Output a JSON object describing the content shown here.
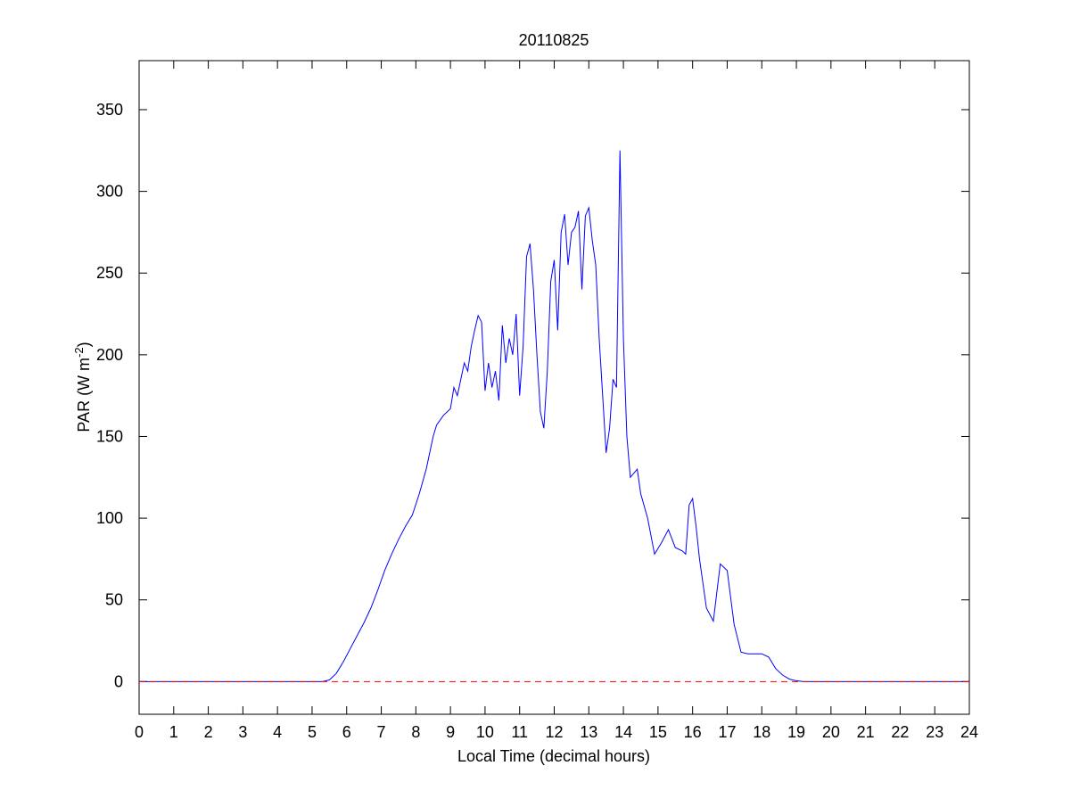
{
  "chart_data": {
    "type": "line",
    "title": "20110825",
    "x_label": "Local Time (decimal hours)",
    "y_label": {
      "text": "PAR (W m",
      "superscript": "-2",
      "suffix": ")"
    },
    "xlim": [
      0,
      24
    ],
    "xticks": [
      0,
      1,
      2,
      3,
      4,
      5,
      6,
      7,
      8,
      9,
      10,
      11,
      12,
      13,
      14,
      15,
      16,
      17,
      18,
      19,
      20,
      21,
      22,
      23,
      24
    ],
    "ylim": [
      -20,
      380
    ],
    "yticks": [
      0,
      50,
      100,
      150,
      200,
      250,
      300,
      350
    ],
    "grid": false,
    "series": [
      {
        "color": "#0000ff",
        "dash": false,
        "x": [
          0,
          5.3,
          5.5,
          5.7,
          5.9,
          6.1,
          6.3,
          6.5,
          6.7,
          6.9,
          7.1,
          7.3,
          7.5,
          7.7,
          7.9,
          8.1,
          8.3,
          8.5,
          8.6,
          8.8,
          9.0,
          9.1,
          9.2,
          9.3,
          9.4,
          9.5,
          9.6,
          9.7,
          9.8,
          9.9,
          10.0,
          10.1,
          10.2,
          10.3,
          10.4,
          10.5,
          10.6,
          10.7,
          10.8,
          10.9,
          11.0,
          11.1,
          11.2,
          11.3,
          11.4,
          11.5,
          11.6,
          11.7,
          11.8,
          11.9,
          12.0,
          12.1,
          12.2,
          12.3,
          12.4,
          12.5,
          12.6,
          12.7,
          12.8,
          12.9,
          13.0,
          13.1,
          13.2,
          13.3,
          13.4,
          13.5,
          13.6,
          13.7,
          13.8,
          13.9,
          14.0,
          14.1,
          14.2,
          14.4,
          14.5,
          14.7,
          14.9,
          15.1,
          15.3,
          15.5,
          15.7,
          15.8,
          15.9,
          16.0,
          16.1,
          16.2,
          16.4,
          16.6,
          16.8,
          17.0,
          17.2,
          17.4,
          17.6,
          17.8,
          18.0,
          18.2,
          18.4,
          18.6,
          18.8,
          19.0,
          19.2,
          24
        ],
        "values": [
          0,
          0,
          1,
          5,
          12,
          20,
          28,
          36,
          45,
          56,
          68,
          78,
          87,
          95,
          102,
          115,
          130,
          150,
          157,
          163,
          167,
          180,
          175,
          185,
          195,
          190,
          205,
          215,
          224,
          220,
          178,
          195,
          180,
          190,
          172,
          218,
          195,
          210,
          200,
          225,
          175,
          205,
          260,
          268,
          240,
          200,
          165,
          155,
          190,
          245,
          258,
          215,
          275,
          286,
          255,
          275,
          278,
          288,
          240,
          285,
          290,
          270,
          255,
          210,
          175,
          140,
          155,
          185,
          180,
          325,
          210,
          150,
          125,
          130,
          115,
          100,
          78,
          85,
          93,
          82,
          80,
          78,
          108,
          112,
          95,
          75,
          45,
          37,
          72,
          68,
          35,
          18,
          17,
          17,
          17,
          15,
          8,
          4,
          1.5,
          0.5,
          0,
          0
        ]
      },
      {
        "color": "#ff0000",
        "dash": true,
        "x": [
          0,
          24
        ],
        "values": [
          0,
          0
        ]
      }
    ]
  }
}
